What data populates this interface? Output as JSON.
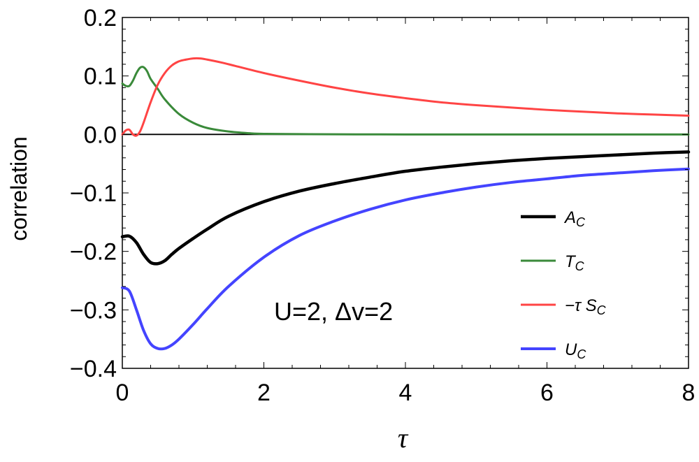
{
  "chart_data": {
    "type": "line",
    "title": "",
    "xlabel": "τ",
    "ylabel": "correlation",
    "xlim": [
      0,
      8
    ],
    "ylim": [
      -0.4,
      0.2
    ],
    "xticks": [
      0,
      2,
      4,
      6,
      8
    ],
    "xtick_labels": [
      "0",
      "2",
      "4",
      "6",
      "8"
    ],
    "yticks": [
      -0.4,
      -0.3,
      -0.2,
      -0.1,
      0.0,
      0.1,
      0.2
    ],
    "ytick_labels": [
      "−0.4",
      "−0.3",
      "−0.2",
      "−0.1",
      "0.0",
      "0.1",
      "0.2"
    ],
    "grid": false,
    "zero_line": true,
    "legend_position": "right",
    "annotation": "U=2, Δv=2",
    "series": [
      {
        "name": "A_C",
        "legend_main": "A",
        "legend_sub": "C",
        "color": "#000000",
        "x": [
          0,
          0.1,
          0.2,
          0.3,
          0.4,
          0.5,
          0.6,
          0.7,
          0.8,
          1.0,
          1.2,
          1.5,
          2.0,
          2.5,
          3.0,
          3.5,
          4.0,
          4.5,
          5.0,
          5.5,
          6.0,
          6.5,
          7.0,
          7.5,
          8.0
        ],
        "y": [
          -0.175,
          -0.174,
          -0.185,
          -0.205,
          -0.219,
          -0.221,
          -0.216,
          -0.205,
          -0.195,
          -0.178,
          -0.162,
          -0.14,
          -0.115,
          -0.097,
          -0.084,
          -0.073,
          -0.063,
          -0.056,
          -0.05,
          -0.045,
          -0.041,
          -0.038,
          -0.035,
          -0.032,
          -0.03
        ]
      },
      {
        "name": "T_C",
        "legend_main": "T",
        "legend_sub": "C",
        "color": "#3a8a3a",
        "x": [
          0,
          0.05,
          0.1,
          0.15,
          0.2,
          0.25,
          0.3,
          0.35,
          0.4,
          0.5,
          0.6,
          0.8,
          1.0,
          1.2,
          1.5,
          1.8,
          2.0,
          2.5,
          3.0,
          4.0,
          5.0,
          6.0,
          7.0,
          8.0
        ],
        "y": [
          0.087,
          0.083,
          0.083,
          0.092,
          0.105,
          0.114,
          0.115,
          0.108,
          0.095,
          0.078,
          0.06,
          0.035,
          0.02,
          0.011,
          0.005,
          0.002,
          0.001,
          0.0005,
          0.0002,
          0.0,
          0.0,
          0.0,
          0.0,
          0.0
        ]
      },
      {
        "name": "−τ S_C",
        "legend_main": "−τ S",
        "legend_sub": "C",
        "color": "#ff4444",
        "x": [
          0,
          0.05,
          0.1,
          0.15,
          0.2,
          0.25,
          0.3,
          0.4,
          0.5,
          0.6,
          0.7,
          0.8,
          0.9,
          1.0,
          1.1,
          1.2,
          1.4,
          1.6,
          2.0,
          2.5,
          3.0,
          3.5,
          4.0,
          4.5,
          5.0,
          5.5,
          6.0,
          6.5,
          7.0,
          7.5,
          8.0
        ],
        "y": [
          0.0,
          0.007,
          0.008,
          0.0,
          -0.002,
          0.005,
          0.02,
          0.055,
          0.085,
          0.105,
          0.118,
          0.125,
          0.128,
          0.13,
          0.13,
          0.128,
          0.123,
          0.117,
          0.105,
          0.092,
          0.08,
          0.07,
          0.062,
          0.055,
          0.05,
          0.046,
          0.042,
          0.039,
          0.036,
          0.034,
          0.032
        ]
      },
      {
        "name": "U_C",
        "legend_main": "U",
        "legend_sub": "C",
        "color": "#4444ff",
        "x": [
          0,
          0.1,
          0.2,
          0.3,
          0.4,
          0.5,
          0.6,
          0.7,
          0.8,
          1.0,
          1.2,
          1.5,
          2.0,
          2.5,
          3.0,
          3.5,
          4.0,
          4.5,
          5.0,
          5.5,
          6.0,
          6.5,
          7.0,
          7.5,
          8.0
        ],
        "y": [
          -0.262,
          -0.268,
          -0.3,
          -0.335,
          -0.358,
          -0.366,
          -0.366,
          -0.36,
          -0.35,
          -0.325,
          -0.298,
          -0.26,
          -0.21,
          -0.173,
          -0.148,
          -0.128,
          -0.112,
          -0.1,
          -0.09,
          -0.082,
          -0.076,
          -0.07,
          -0.066,
          -0.062,
          -0.059
        ]
      }
    ]
  }
}
